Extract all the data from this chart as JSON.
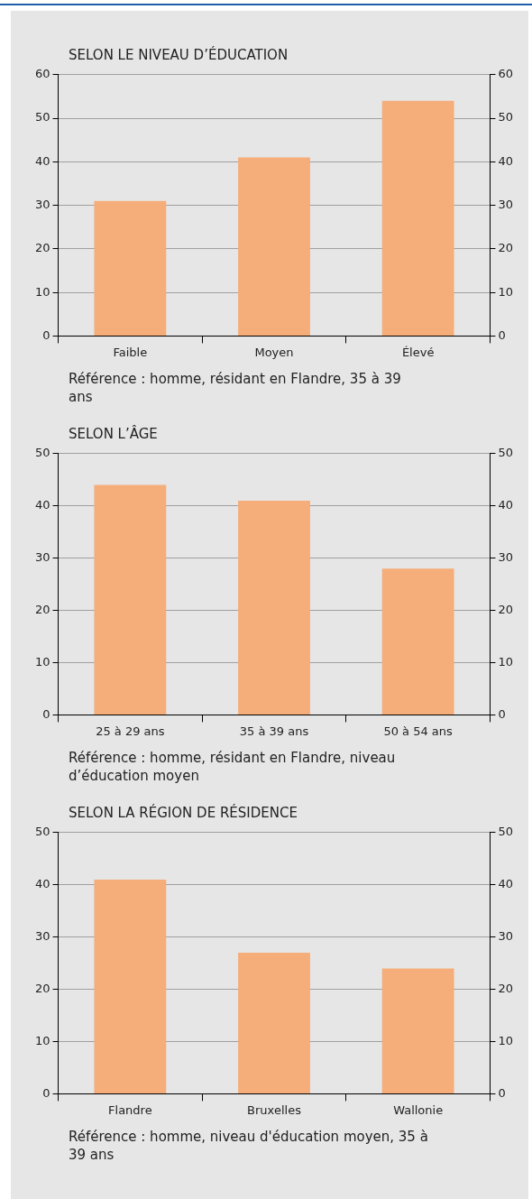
{
  "chart_data": [
    {
      "type": "bar",
      "title": "SELON LE NIVEAU D’ÉDUCATION",
      "categories": [
        "Faible",
        "Moyen",
        "Élevé"
      ],
      "values": [
        31,
        41,
        54
      ],
      "color": "#f5ad7a",
      "ylim": [
        0,
        60
      ],
      "yticks": [
        0,
        10,
        20,
        30,
        40,
        50,
        60
      ],
      "y2lim": [
        0,
        60
      ],
      "y2ticks": [
        0,
        10,
        20,
        30,
        40,
        50,
        60
      ],
      "grid": "y",
      "annotations": [
        "Référence : homme, résidant en Flandre, 35 à 39 ans"
      ]
    },
    {
      "type": "bar",
      "title": "SELON L’ÂGE",
      "categories": [
        "25 à 29 ans",
        "35 à 39 ans",
        "50 à 54 ans"
      ],
      "values": [
        44,
        41,
        28
      ],
      "color": "#f5ad7a",
      "ylim": [
        0,
        50
      ],
      "yticks": [
        0,
        10,
        20,
        30,
        40,
        50
      ],
      "y2lim": [
        0,
        50
      ],
      "y2ticks": [
        0,
        10,
        20,
        30,
        40,
        50
      ],
      "grid": "y",
      "annotations": [
        "Référence : homme, résidant en Flandre, niveau d’éducation moyen"
      ]
    },
    {
      "type": "bar",
      "title": "SELON LA RÉGION DE RÉSIDENCE",
      "categories": [
        "Flandre",
        "Bruxelles",
        "Wallonie"
      ],
      "values": [
        41,
        27,
        24
      ],
      "color": "#f5ad7a",
      "ylim": [
        0,
        50
      ],
      "yticks": [
        0,
        10,
        20,
        30,
        40,
        50
      ],
      "y2lim": [
        0,
        50
      ],
      "y2ticks": [
        0,
        10,
        20,
        30,
        40,
        50
      ],
      "grid": "y",
      "annotations": [
        "Référence : homme, niveau d'éducation moyen, 35 à 39 ans"
      ]
    }
  ]
}
